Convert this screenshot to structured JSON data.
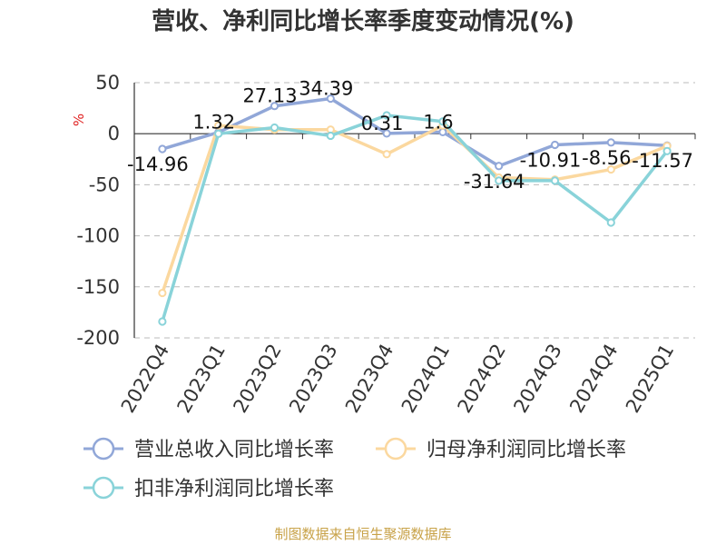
{
  "chart_data": {
    "type": "line",
    "title": "营收、净利同比增长率季度变动情况(%)",
    "ylabel": "%",
    "categories": [
      "2022Q4",
      "2023Q1",
      "2023Q2",
      "2023Q3",
      "2023Q4",
      "2024Q1",
      "2024Q2",
      "2024Q3",
      "2024Q4",
      "2025Q1"
    ],
    "ylim": [
      -200,
      50
    ],
    "yticks": [
      50,
      0,
      -50,
      -100,
      -150,
      -200
    ],
    "grid": true,
    "legend_position": "bottom-left",
    "series": [
      {
        "name": "营业总收入同比增长率",
        "color": "#91a7d8",
        "values": [
          -14.96,
          1.32,
          27.13,
          34.39,
          0.31,
          1.6,
          -31.64,
          -10.91,
          -8.56,
          -11.57
        ],
        "labels": [
          "-14.96",
          "1.32",
          "27.13",
          "34.39",
          "0.31",
          "1.6",
          "-31.64",
          "-10.91",
          "-8.56",
          "-11.57"
        ]
      },
      {
        "name": "归母净利润同比增长率",
        "color": "#fbd89f",
        "values": [
          -156,
          8,
          4,
          4,
          -20,
          8,
          -43,
          -45,
          -35,
          -12
        ]
      },
      {
        "name": "扣非净利润同比增长率",
        "color": "#89d3d9",
        "values": [
          -184,
          0,
          6,
          -2,
          18,
          12,
          -46,
          -46,
          -87,
          -17
        ]
      }
    ]
  },
  "source": "制图数据来自恒生聚源数据库"
}
